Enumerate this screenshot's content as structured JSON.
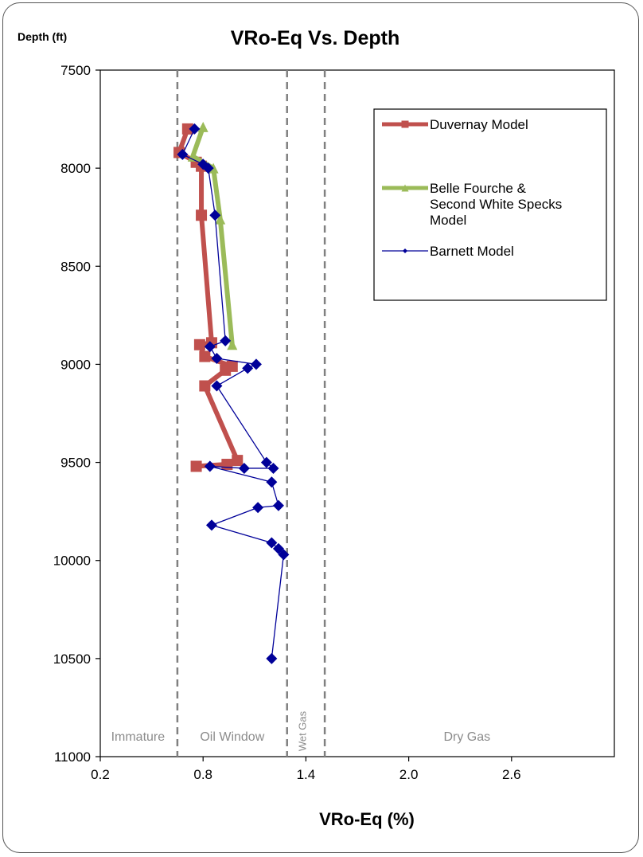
{
  "chart_data": {
    "type": "line",
    "title": "VRo-Eq Vs. Depth",
    "xlabel": "VRo-Eq (%)",
    "ylabel": "Depth (ft)",
    "xlim": [
      0.2,
      3.2
    ],
    "ylim": [
      11000,
      7500
    ],
    "x_ticks": [
      "0.2",
      "0.8",
      "1.4",
      "2.0",
      "2.6"
    ],
    "x_tick_values": [
      0.2,
      0.8,
      1.4,
      2.0,
      2.6
    ],
    "y_ticks": [
      "7500",
      "8000",
      "8500",
      "9000",
      "9500",
      "10000",
      "10500",
      "11000"
    ],
    "y_tick_values": [
      7500,
      8000,
      8500,
      9000,
      9500,
      10000,
      10500,
      11000
    ],
    "y_inverted": true,
    "grid": false,
    "legend_position": "top-right",
    "zone_lines": [
      0.65,
      1.29,
      1.51
    ],
    "zone_labels": [
      {
        "text": "Immature",
        "x": 0.42
      },
      {
        "text": "Oil Window",
        "x": 0.97
      },
      {
        "text": "Wet Gas",
        "x": 1.4
      },
      {
        "text": "Dry Gas",
        "x": 2.34
      }
    ],
    "series": [
      {
        "name": "Duvernay Model",
        "color": "#c0504d",
        "marker": "square",
        "points": [
          [
            0.71,
            7800
          ],
          [
            0.66,
            7920
          ],
          [
            0.76,
            7970
          ],
          [
            0.79,
            7990
          ],
          [
            0.79,
            8240
          ],
          [
            0.85,
            8890
          ],
          [
            0.78,
            8900
          ],
          [
            0.81,
            8960
          ],
          [
            0.97,
            9010
          ],
          [
            0.93,
            9030
          ],
          [
            0.81,
            9110
          ],
          [
            1.0,
            9490
          ],
          [
            0.94,
            9510
          ],
          [
            0.76,
            9520
          ]
        ]
      },
      {
        "name": "Belle Fourche & Second White Specks Model",
        "color": "#9bbb59",
        "marker": "triangle",
        "points": [
          [
            0.8,
            7790
          ],
          [
            0.74,
            7940
          ],
          [
            0.86,
            8000
          ],
          [
            0.9,
            8260
          ],
          [
            0.97,
            8900
          ]
        ]
      },
      {
        "name": "Barnett Model",
        "color": "#000099",
        "marker": "diamond",
        "points": [
          [
            0.75,
            7800
          ],
          [
            0.68,
            7930
          ],
          [
            0.8,
            7980
          ],
          [
            0.83,
            8000
          ],
          [
            0.87,
            8240
          ],
          [
            0.93,
            8880
          ],
          [
            0.84,
            8910
          ],
          [
            0.88,
            8970
          ],
          [
            1.11,
            9000
          ],
          [
            1.06,
            9020
          ],
          [
            0.88,
            9110
          ],
          [
            1.17,
            9500
          ],
          [
            1.21,
            9530
          ],
          [
            1.04,
            9530
          ],
          [
            0.84,
            9520
          ],
          [
            1.2,
            9600
          ],
          [
            1.24,
            9720
          ],
          [
            1.12,
            9730
          ],
          [
            0.85,
            9820
          ],
          [
            1.2,
            9910
          ],
          [
            1.24,
            9940
          ],
          [
            1.27,
            9970
          ],
          [
            1.2,
            10500
          ]
        ]
      }
    ]
  }
}
